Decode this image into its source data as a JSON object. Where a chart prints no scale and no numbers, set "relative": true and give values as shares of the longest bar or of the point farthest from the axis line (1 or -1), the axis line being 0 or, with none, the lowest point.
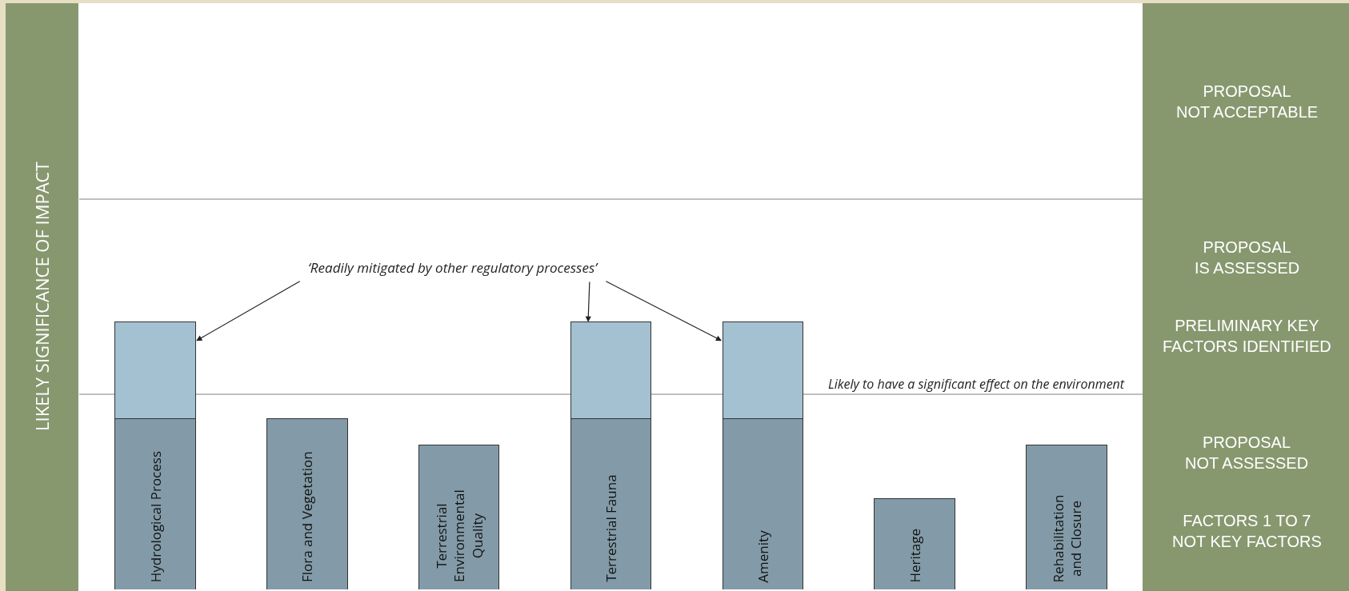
{
  "chart_data": {
    "type": "bar",
    "relative": true,
    "stacked": true,
    "ylabel": "LIKELY SIGNIFICANCE OF IMPACT",
    "categories": [
      "Hydrological Process",
      "Flora and Vegetation",
      "Terrestrial Environmental Quality",
      "Terrestrial Fauna",
      "Amenity",
      "Heritage",
      "Rehabilitation and Closure"
    ],
    "series": [
      {
        "color": "#839ba8",
        "values": [
          0.64,
          0.64,
          0.54,
          0.64,
          0.64,
          0.34,
          0.54
        ]
      },
      {
        "color": "#a3c1d0",
        "values": [
          0.36,
          null,
          null,
          0.36,
          0.36,
          null,
          null
        ]
      }
    ],
    "ref_lines": [
      {
        "axis": "y",
        "value": 0.73,
        "label": "Likely to have a significant effect on the environment",
        "color": "#aaaaaa"
      },
      {
        "axis": "y",
        "value": 1.46,
        "color": "#aaaaaa"
      }
    ],
    "annotations": [
      "‘Readily mitigated by other regulatory processes’",
      "PROPOSAL\nNOT ACCEPTABLE",
      "PROPOSAL\nIS ASSESSED",
      "PRELIMINARY KEY\nFACTORS IDENTIFIED",
      "PROPOSAL\nNOT ASSESSED",
      "FACTORS 1 TO 7\nNOT KEY FACTORS"
    ],
    "grid": false
  }
}
